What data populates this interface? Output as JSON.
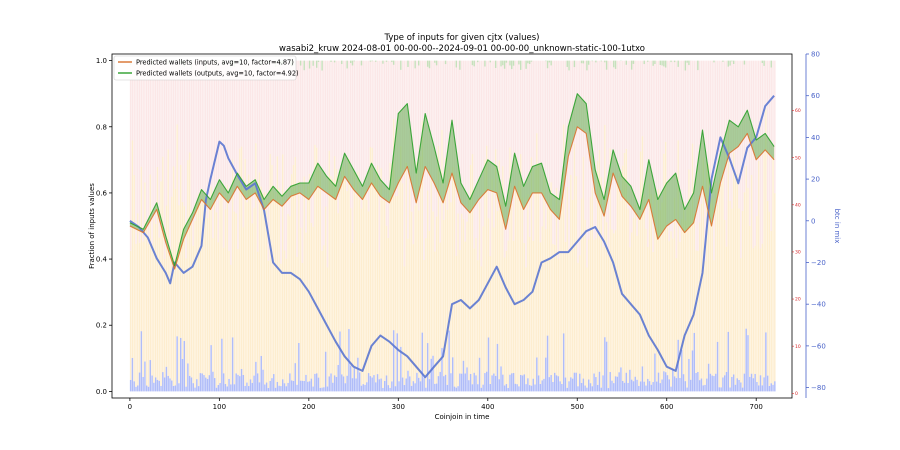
{
  "chart_data": {
    "type": "line",
    "title": "Type of inputs for given cjtx (values)",
    "subtitle": "wasabi2_kruw 2024-08-01 00-00-00--2024-09-01 00-00-00_unknown-static-100-1utxo",
    "xlabel": "Coinjoin in time",
    "ylabel": "Fraction of inputs values",
    "ylabel_right": "btc in mix",
    "xlim": [
      -20,
      740
    ],
    "ylim": [
      -0.02,
      1.02
    ],
    "y2lim": [
      -85,
      80
    ],
    "y3lim": [
      -1,
      72
    ],
    "x_ticks": [
      "0",
      "100",
      "200",
      "300",
      "400",
      "500",
      "600",
      "700"
    ],
    "y_ticks": [
      "0.0",
      "0.2",
      "0.4",
      "0.6",
      "0.8",
      "1.0"
    ],
    "y2_ticks": [
      "−80",
      "−60",
      "−40",
      "−20",
      "0",
      "20",
      "40",
      "60",
      "80"
    ],
    "y3_ticks": [
      "0",
      "10",
      "20",
      "30",
      "40",
      "50",
      "60"
    ],
    "legend_position": "top-left",
    "grid": false,
    "colors": {
      "inputs": "#d9722e",
      "outputs": "#2ca02c",
      "fill_between": "#55a845",
      "btc": "#5a76d0",
      "band_pink": "#f6c9c9",
      "band_orange": "#fbdfa8",
      "band_blue": "#8f9ff5",
      "band_green": "#b9dfb0",
      "right_axis_red": "#d62728"
    },
    "series": [
      {
        "name": "Predicted wallets (inputs, avg=10, factor=4.87)",
        "x": [
          0,
          15,
          30,
          40,
          50,
          60,
          70,
          80,
          90,
          100,
          110,
          120,
          130,
          140,
          150,
          160,
          170,
          180,
          190,
          200,
          210,
          220,
          230,
          240,
          250,
          260,
          270,
          280,
          290,
          300,
          310,
          320,
          330,
          340,
          350,
          360,
          370,
          380,
          390,
          400,
          410,
          420,
          430,
          440,
          450,
          460,
          470,
          480,
          490,
          500,
          510,
          520,
          530,
          540,
          550,
          560,
          570,
          580,
          590,
          600,
          610,
          620,
          630,
          640,
          650,
          660,
          670,
          680,
          690,
          700,
          710,
          720
        ],
        "values": [
          0.5,
          0.48,
          0.55,
          0.45,
          0.37,
          0.46,
          0.52,
          0.58,
          0.55,
          0.6,
          0.57,
          0.62,
          0.58,
          0.6,
          0.55,
          0.58,
          0.56,
          0.59,
          0.6,
          0.58,
          0.62,
          0.6,
          0.58,
          0.65,
          0.61,
          0.58,
          0.63,
          0.59,
          0.57,
          0.63,
          0.68,
          0.57,
          0.68,
          0.63,
          0.57,
          0.66,
          0.57,
          0.54,
          0.58,
          0.61,
          0.6,
          0.49,
          0.62,
          0.55,
          0.6,
          0.6,
          0.55,
          0.52,
          0.71,
          0.8,
          0.78,
          0.6,
          0.53,
          0.66,
          0.59,
          0.56,
          0.52,
          0.58,
          0.46,
          0.5,
          0.52,
          0.48,
          0.51,
          0.62,
          0.5,
          0.63,
          0.72,
          0.74,
          0.78,
          0.7,
          0.73,
          0.7
        ]
      },
      {
        "name": "Predicted wallets (outputs, avg=10, factor=4.92)",
        "x": [
          0,
          15,
          30,
          40,
          50,
          60,
          70,
          80,
          90,
          100,
          110,
          120,
          130,
          140,
          150,
          160,
          170,
          180,
          190,
          200,
          210,
          220,
          230,
          240,
          250,
          260,
          270,
          280,
          290,
          300,
          310,
          320,
          330,
          340,
          350,
          360,
          370,
          380,
          390,
          400,
          410,
          420,
          430,
          440,
          450,
          460,
          470,
          480,
          490,
          500,
          510,
          520,
          530,
          540,
          550,
          560,
          570,
          580,
          590,
          600,
          610,
          620,
          630,
          640,
          650,
          660,
          670,
          680,
          690,
          700,
          710,
          720
        ],
        "values": [
          0.51,
          0.49,
          0.57,
          0.47,
          0.38,
          0.49,
          0.54,
          0.61,
          0.58,
          0.64,
          0.6,
          0.66,
          0.62,
          0.64,
          0.58,
          0.62,
          0.59,
          0.62,
          0.63,
          0.63,
          0.69,
          0.65,
          0.62,
          0.72,
          0.67,
          0.62,
          0.69,
          0.64,
          0.61,
          0.84,
          0.87,
          0.66,
          0.84,
          0.74,
          0.63,
          0.82,
          0.63,
          0.58,
          0.64,
          0.7,
          0.68,
          0.56,
          0.72,
          0.62,
          0.68,
          0.69,
          0.6,
          0.58,
          0.8,
          0.9,
          0.87,
          0.67,
          0.58,
          0.73,
          0.65,
          0.62,
          0.55,
          0.7,
          0.58,
          0.63,
          0.66,
          0.55,
          0.6,
          0.79,
          0.6,
          0.72,
          0.82,
          0.8,
          0.85,
          0.76,
          0.78,
          0.74
        ]
      },
      {
        "name": "btc in mix",
        "axis": "right",
        "x": [
          0,
          10,
          20,
          30,
          40,
          45,
          50,
          60,
          70,
          80,
          85,
          90,
          100,
          105,
          110,
          120,
          130,
          140,
          150,
          160,
          170,
          180,
          190,
          200,
          210,
          220,
          230,
          240,
          250,
          260,
          270,
          280,
          290,
          300,
          310,
          320,
          330,
          340,
          350,
          360,
          370,
          380,
          390,
          400,
          410,
          420,
          430,
          440,
          450,
          460,
          470,
          480,
          490,
          500,
          510,
          520,
          530,
          540,
          550,
          560,
          570,
          580,
          590,
          600,
          610,
          620,
          630,
          640,
          650,
          660,
          670,
          680,
          690,
          700,
          710,
          720
        ],
        "values": [
          0,
          -3,
          -8,
          -18,
          -25,
          -30,
          -20,
          -25,
          -22,
          -12,
          10,
          20,
          38,
          36,
          30,
          22,
          15,
          18,
          5,
          -20,
          -25,
          -25,
          -28,
          -34,
          -42,
          -50,
          -58,
          -65,
          -70,
          -72,
          -60,
          -55,
          -58,
          -62,
          -65,
          -70,
          -75,
          -70,
          -65,
          -40,
          -38,
          -42,
          -38,
          -30,
          -22,
          -32,
          -40,
          -38,
          -34,
          -20,
          -18,
          -15,
          -15,
          -10,
          -5,
          -3,
          -10,
          -20,
          -35,
          -40,
          -45,
          -55,
          -62,
          -70,
          -72,
          -55,
          -45,
          -25,
          20,
          40,
          30,
          18,
          35,
          40,
          55,
          60
        ]
      }
    ]
  }
}
